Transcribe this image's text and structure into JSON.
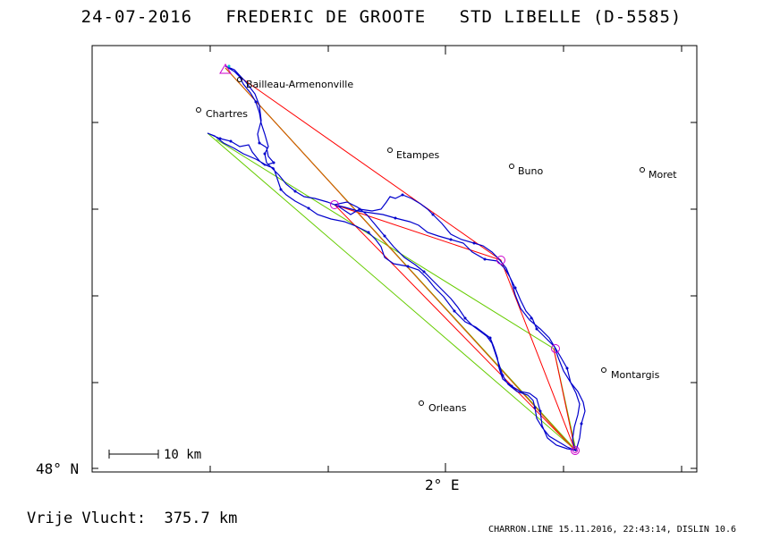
{
  "header": {
    "date": "24-07-2016",
    "pilot": "FREDERIC DE GROOTE",
    "glider": "STD LIBELLE (D-5585)"
  },
  "axes": {
    "lat_label": "48° N",
    "lon_label": "2° E"
  },
  "scale_bar": {
    "label": "10 km"
  },
  "towns": [
    {
      "name": "Bailleau-Armenonville"
    },
    {
      "name": "Chartres"
    },
    {
      "name": "Etampes"
    },
    {
      "name": "Buno"
    },
    {
      "name": "Moret"
    },
    {
      "name": "Montargis"
    },
    {
      "name": "Orleans"
    }
  ],
  "footer": {
    "free_flight": "Vrije Vlucht:  375.7 km",
    "credits": "CHARRON.LINE 15.11.2016, 22:43:14, DISLIN 10.6"
  },
  "colors": {
    "track": "#0000cc",
    "task": "#ff0000",
    "free": "#66cc00",
    "turnpoint": "#cc00cc"
  }
}
